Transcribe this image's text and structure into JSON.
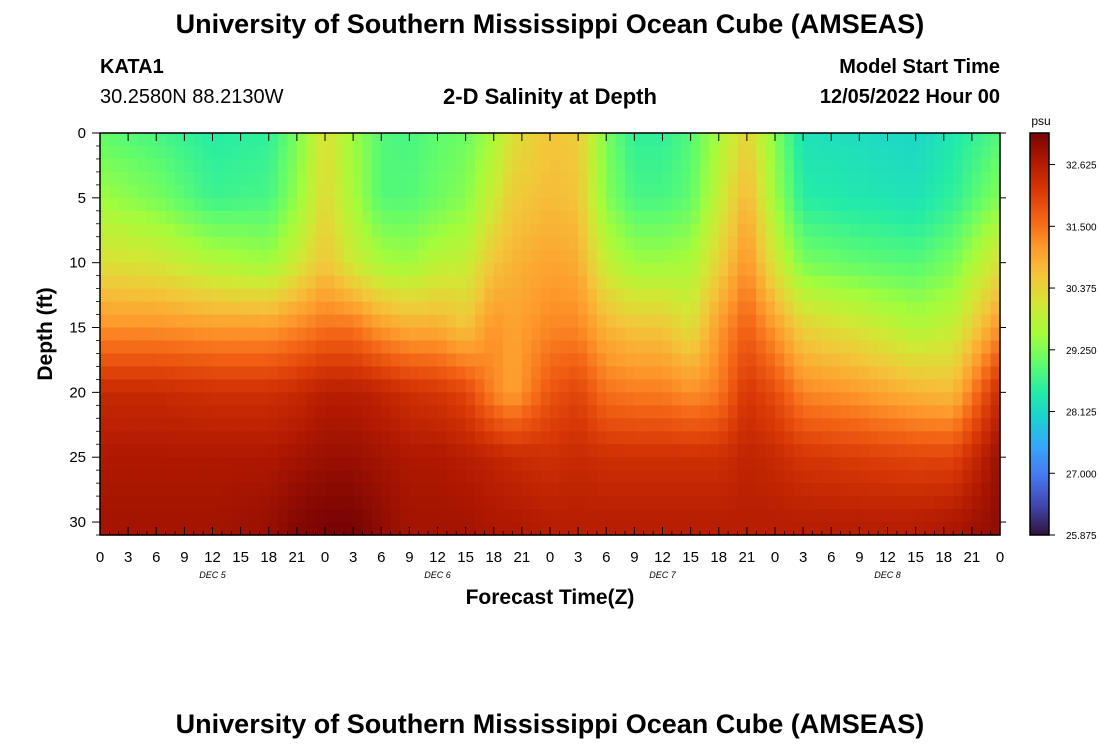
{
  "header": {
    "title": "University of Southern Mississippi Ocean Cube (AMSEAS)",
    "station_id": "KATA1",
    "station_coords": "30.2580N  88.2130W",
    "plot_title": "2-D Salinity at Depth",
    "model_start_label": "Model Start Time",
    "model_start_value": "12/05/2022 Hour 00"
  },
  "footer": {
    "title": "University of Southern Mississippi Ocean Cube (AMSEAS)"
  },
  "colors": {
    "colormap": [
      "#30123b",
      "#4145ab",
      "#4675ed",
      "#39a2fc",
      "#1bcfd4",
      "#24eca6",
      "#61fc6c",
      "#a4fc3b",
      "#d1e834",
      "#f3c63a",
      "#fe9b2d",
      "#f36315",
      "#d93806",
      "#b11901",
      "#7a0403"
    ]
  },
  "chart_data": {
    "type": "heatmap",
    "title": "2-D Salinity at Depth",
    "xlabel": "Forecast Time(Z)",
    "ylabel": "Depth (ft)",
    "x_range_hours": [
      0,
      96
    ],
    "x_ticks": [
      "0",
      "3",
      "6",
      "9",
      "12",
      "15",
      "18",
      "21",
      "0",
      "3",
      "6",
      "9",
      "12",
      "15",
      "18",
      "21",
      "0",
      "3",
      "6",
      "9",
      "12",
      "15",
      "18",
      "21",
      "0",
      "3",
      "6",
      "9",
      "12",
      "15",
      "18",
      "21",
      "0"
    ],
    "day_labels": [
      {
        "label": "DEC 5",
        "hour": 12
      },
      {
        "label": "DEC 6",
        "hour": 36
      },
      {
        "label": "DEC 7",
        "hour": 60
      },
      {
        "label": "DEC 8",
        "hour": 84
      }
    ],
    "ylim": [
      0,
      31
    ],
    "y_ticks": [
      0,
      5,
      10,
      15,
      20,
      25,
      30
    ],
    "colorbar": {
      "unit": "psu",
      "range": [
        25.875,
        33.2
      ],
      "ticks": [
        "32.625",
        "31.500",
        "30.375",
        "29.250",
        "28.125",
        "27.000",
        "25.875"
      ]
    },
    "depth_levels_ft": [
      0,
      5,
      10,
      15,
      20,
      25,
      30
    ],
    "series": [
      {
        "hour": 0,
        "values": [
          29.0,
          29.5,
          30.2,
          31.2,
          32.4,
          32.7,
          32.8
        ]
      },
      {
        "hour": 6,
        "values": [
          28.8,
          29.2,
          30.1,
          31.2,
          32.4,
          32.7,
          32.8
        ]
      },
      {
        "hour": 12,
        "values": [
          28.5,
          28.7,
          29.7,
          31.1,
          32.3,
          32.7,
          32.8
        ]
      },
      {
        "hour": 18,
        "values": [
          28.6,
          28.8,
          29.5,
          31.1,
          32.3,
          32.7,
          32.9
        ]
      },
      {
        "hour": 21,
        "values": [
          29.2,
          29.4,
          30.0,
          31.3,
          32.4,
          32.8,
          33.1
        ]
      },
      {
        "hour": 24,
        "values": [
          30.2,
          30.3,
          30.6,
          31.5,
          32.6,
          32.9,
          33.2
        ]
      },
      {
        "hour": 27,
        "values": [
          29.5,
          29.6,
          30.0,
          31.5,
          32.6,
          32.9,
          33.2
        ]
      },
      {
        "hour": 30,
        "values": [
          28.9,
          28.9,
          29.6,
          31.1,
          32.5,
          32.8,
          33.0
        ]
      },
      {
        "hour": 33,
        "values": [
          28.8,
          28.9,
          29.5,
          30.9,
          32.3,
          32.7,
          32.8
        ]
      },
      {
        "hour": 36,
        "values": [
          29.0,
          29.1,
          29.8,
          30.9,
          32.2,
          32.7,
          32.8
        ]
      },
      {
        "hour": 39,
        "values": [
          29.1,
          29.3,
          29.9,
          30.6,
          32.0,
          32.6,
          32.8
        ]
      },
      {
        "hour": 42,
        "values": [
          29.6,
          30.0,
          30.6,
          31.2,
          31.3,
          32.5,
          32.7
        ]
      },
      {
        "hour": 44,
        "values": [
          30.2,
          30.5,
          30.8,
          31.0,
          31.0,
          32.4,
          32.7
        ]
      },
      {
        "hour": 48,
        "values": [
          30.6,
          30.7,
          31.0,
          31.3,
          31.8,
          32.3,
          32.6
        ]
      },
      {
        "hour": 51,
        "values": [
          30.5,
          30.6,
          30.9,
          31.3,
          32.0,
          32.4,
          32.6
        ]
      },
      {
        "hour": 54,
        "values": [
          29.2,
          29.3,
          29.9,
          30.8,
          31.5,
          32.3,
          32.6
        ]
      },
      {
        "hour": 57,
        "values": [
          28.6,
          28.8,
          29.5,
          30.6,
          31.4,
          32.3,
          32.6
        ]
      },
      {
        "hour": 60,
        "values": [
          28.6,
          28.8,
          29.5,
          30.6,
          31.4,
          32.3,
          32.6
        ]
      },
      {
        "hour": 63,
        "values": [
          28.9,
          29.0,
          29.6,
          30.2,
          31.2,
          32.3,
          32.6
        ]
      },
      {
        "hour": 66,
        "values": [
          29.6,
          29.9,
          30.4,
          31.1,
          31.4,
          32.3,
          32.6
        ]
      },
      {
        "hour": 69,
        "values": [
          30.4,
          30.8,
          31.2,
          31.7,
          32.2,
          32.5,
          32.6
        ]
      },
      {
        "hour": 72,
        "values": [
          29.3,
          29.5,
          30.1,
          31.1,
          31.9,
          32.4,
          32.6
        ]
      },
      {
        "hour": 75,
        "values": [
          28.3,
          28.5,
          29.2,
          30.4,
          31.3,
          32.2,
          32.6
        ]
      },
      {
        "hour": 81,
        "values": [
          28.2,
          28.4,
          29.0,
          30.1,
          31.1,
          32.1,
          32.6
        ]
      },
      {
        "hour": 87,
        "values": [
          28.1,
          28.3,
          28.9,
          29.7,
          30.8,
          32.0,
          32.6
        ]
      },
      {
        "hour": 91,
        "values": [
          28.4,
          28.6,
          29.2,
          29.9,
          30.7,
          32.0,
          32.7
        ]
      },
      {
        "hour": 96,
        "values": [
          28.9,
          29.3,
          30.2,
          31.2,
          32.4,
          32.9,
          33.0
        ]
      }
    ]
  }
}
